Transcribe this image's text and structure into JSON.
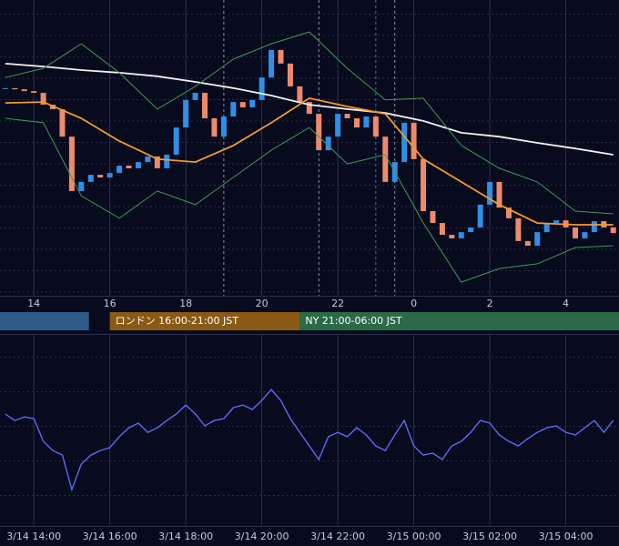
{
  "chart_data": [
    {
      "type": "candlestick",
      "xlim": [
        13.11,
        29.4
      ],
      "ylim": [
        0,
        100
      ],
      "xticks": [
        14,
        16,
        18,
        20,
        22,
        {
          "value": 24,
          "label": "0"
        },
        {
          "value": 26,
          "label": "2"
        },
        {
          "value": 28,
          "label": "4"
        }
      ],
      "up_color": "#2f8fe8",
      "down_color": "#ee8a6c",
      "x": [
        13.25,
        13.5,
        13.75,
        14,
        14.25,
        14.5,
        14.75,
        15,
        15.25,
        15.5,
        15.75,
        16,
        16.25,
        16.5,
        16.75,
        17,
        17.25,
        17.5,
        17.75,
        18,
        18.25,
        18.5,
        18.75,
        19,
        19.25,
        19.5,
        19.75,
        20,
        20.25,
        20.5,
        20.75,
        21,
        21.25,
        21.5,
        21.75,
        22,
        22.25,
        22.5,
        22.75,
        23,
        23.25,
        23.5,
        23.75,
        24,
        24.25,
        24.5,
        24.75,
        25,
        25.25,
        25.5,
        25.75,
        26,
        26.25,
        26.5,
        26.75,
        27,
        27.25,
        27.5,
        27.75,
        28,
        28.25,
        28.5,
        28.75,
        29,
        29.25
      ],
      "close": [
        70.2,
        69.8,
        69.2,
        68.6,
        64.6,
        63.1,
        53.8,
        35.4,
        38.5,
        40.9,
        40.0,
        41.5,
        44.0,
        43.1,
        45.2,
        47.1,
        43.1,
        47.7,
        56.9,
        66.2,
        68.6,
        60.0,
        53.8,
        60.6,
        65.5,
        63.7,
        66.2,
        73.8,
        83.1,
        78.5,
        70.8,
        65.5,
        61.5,
        49.2,
        53.8,
        61.5,
        60.0,
        56.9,
        60.6,
        53.8,
        38.5,
        45.2,
        58.5,
        46.2,
        28.6,
        24.6,
        20.6,
        19.4,
        21.5,
        23.1,
        30.8,
        38.5,
        29.8,
        26.2,
        18.5,
        16.9,
        21.5,
        24.6,
        25.5,
        23.1,
        19.4,
        21.5,
        25.2,
        23.1,
        21.2
      ],
      "lines": [
        {
          "color": "#f2f2f2",
          "x": [
            13.25,
            14.25,
            15.25,
            16.25,
            17.25,
            18.25,
            19.25,
            20.25,
            21.25,
            22.25,
            23.25,
            24.25,
            25.25,
            26.25,
            27.25,
            28.25,
            29.25
          ],
          "values": [
            78.5,
            77.5,
            76.3,
            75.4,
            74.2,
            72.3,
            70.2,
            67.7,
            64.6,
            63.1,
            61.8,
            59.1,
            55.1,
            53.8,
            51.7,
            49.8,
            47.7
          ]
        },
        {
          "color": "#f39a2c",
          "x": [
            13.25,
            14.25,
            15.25,
            16.25,
            17.25,
            18.25,
            19.25,
            20.25,
            21.25,
            22.25,
            23.25,
            24.25,
            25.25,
            26.25,
            27.25,
            28.25,
            29.25
          ],
          "values": [
            65.2,
            65.5,
            60.0,
            52.3,
            46.2,
            45.2,
            50.8,
            58.5,
            66.8,
            64.0,
            61.5,
            46.2,
            38.5,
            30.8,
            24.6,
            24.0,
            24.0
          ]
        },
        {
          "color": "#3f9a55",
          "x": [
            13.25,
            14.25,
            15.25,
            16.25,
            17.25,
            18.25,
            19.25,
            20.25,
            21.25,
            22.25,
            23.25,
            24.25,
            25.25,
            26.25,
            27.25,
            28.25,
            29.25
          ],
          "values": [
            73.8,
            76.9,
            85.2,
            75.4,
            63.1,
            70.8,
            80.0,
            85.2,
            89.2,
            76.9,
            66.2,
            66.8,
            50.8,
            43.1,
            38.5,
            28.6,
            27.7
          ]
        },
        {
          "color": "#3f9a55",
          "x": [
            13.25,
            14.25,
            15.25,
            16.25,
            17.25,
            18.25,
            19.25,
            20.25,
            21.25,
            22.25,
            23.25,
            24.25,
            25.25,
            26.25,
            27.25,
            28.25,
            29.25
          ],
          "values": [
            60.0,
            58.5,
            33.8,
            26.2,
            35.4,
            30.8,
            40.0,
            49.2,
            56.9,
            44.6,
            47.7,
            24.6,
            4.6,
            9.2,
            10.8,
            16.3,
            16.9
          ]
        }
      ],
      "markers": [
        {
          "x": 19,
          "color": "#8a8fa8"
        },
        {
          "x": 21.5,
          "color": "#8a8fa8"
        },
        {
          "x": 23,
          "color": "#3f6fc8"
        },
        {
          "x": 23.5,
          "color": "#8a8fa8"
        }
      ],
      "sessions": [
        {
          "start": 9,
          "end": 15.45,
          "color": "#2e5a8c"
        },
        {
          "start": 16,
          "end": 21,
          "color": "#8a5a14",
          "label": "ロンドン 16:00-21:00 JST"
        },
        {
          "start": 21,
          "end": 30,
          "color": "#2a6a48",
          "label": "NY 21:00-06:00 JST"
        }
      ]
    },
    {
      "type": "line",
      "color": "#5d6bf0",
      "xlim": [
        13.11,
        29.4
      ],
      "ylim": [
        0,
        100
      ],
      "xticks": [
        {
          "value": 14,
          "label": "3/14 14:00"
        },
        {
          "value": 16,
          "label": "3/14 16:00"
        },
        {
          "value": 18,
          "label": "3/14 18:00"
        },
        {
          "value": 20,
          "label": "3/14 20:00"
        },
        {
          "value": 22,
          "label": "3/14 22:00"
        },
        {
          "value": 24,
          "label": "3/15 00:00"
        },
        {
          "value": 26,
          "label": "3/15 02:00"
        },
        {
          "value": 28,
          "label": "3/15 04:00"
        }
      ],
      "x": [
        13.25,
        13.5,
        13.75,
        14,
        14.25,
        14.5,
        14.75,
        15,
        15.25,
        15.5,
        15.75,
        16,
        16.25,
        16.5,
        16.75,
        17,
        17.25,
        17.5,
        17.75,
        18,
        18.25,
        18.5,
        18.75,
        19,
        19.25,
        19.5,
        19.75,
        20,
        20.25,
        20.5,
        20.75,
        21,
        21.25,
        21.5,
        21.75,
        22,
        22.25,
        22.5,
        22.75,
        23,
        23.25,
        23.5,
        23.75,
        24,
        24.25,
        24.5,
        24.75,
        25,
        25.25,
        25.5,
        25.75,
        26,
        26.25,
        26.5,
        26.75,
        27,
        27.25,
        27.5,
        27.75,
        28,
        28.25,
        28.5,
        28.75,
        29,
        29.25
      ],
      "values": [
        58.6,
        55.2,
        57.1,
        56.2,
        44.3,
        39.5,
        37.1,
        19.0,
        32.4,
        37.1,
        39.5,
        41.0,
        46.7,
        51.4,
        53.8,
        49.0,
        51.4,
        55.2,
        58.6,
        63.3,
        58.6,
        52.4,
        55.2,
        56.2,
        61.9,
        63.3,
        61.0,
        65.7,
        71.4,
        65.7,
        56.2,
        49.0,
        41.9,
        34.8,
        46.7,
        49.0,
        46.7,
        51.4,
        47.6,
        41.9,
        39.5,
        47.6,
        55.2,
        41.9,
        37.1,
        38.1,
        34.8,
        41.9,
        44.3,
        49.0,
        55.2,
        53.8,
        47.6,
        44.3,
        41.9,
        45.7,
        49.0,
        51.4,
        52.4,
        49.0,
        47.6,
        51.4,
        55.2,
        49.0,
        55.2
      ]
    }
  ]
}
